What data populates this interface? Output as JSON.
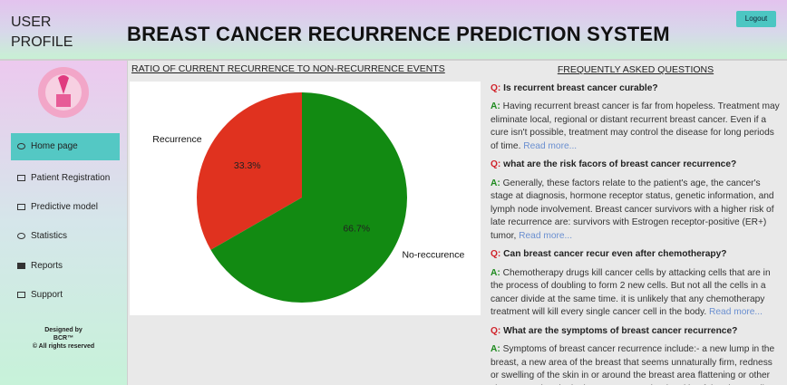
{
  "header": {
    "profile": "USER PROFILE",
    "title": "BREAST CANCER RECURRENCE PREDICTION SYSTEM",
    "logout": "Logout"
  },
  "sidebar": {
    "menu": [
      "Home page",
      "Patient Registration",
      "Predictive model",
      "Statistics",
      "Reports",
      "Support"
    ],
    "footer": [
      "Designed by",
      "BCR™",
      "© All rights reserved"
    ]
  },
  "chart_data": {
    "type": "pie",
    "title": "RATIO OF CURRENT RECURRENCE TO NON-RECURRENCE EVENTS",
    "categories": [
      "Recurrence",
      "No-reccurence"
    ],
    "values": [
      33.3,
      66.7
    ],
    "value_labels": [
      "33.3%",
      "66.7%"
    ],
    "colors": [
      "#e0321f",
      "#128a12"
    ],
    "start_angle": 90
  },
  "faq": {
    "title": "FREQUENTLY ASKED QUESTIONS",
    "q_label": "Q:",
    "a_label": "A:",
    "link": "Read more...",
    "items": [
      {
        "question": "Is recurrent breast cancer curable?",
        "answer": "Having recurrent breast cancer is far from hopeless. Treatment may eliminate local, regional or distant recurrent breast cancer. Even if a cure isn't possible, treatment may control the disease for long periods of time."
      },
      {
        "question": "what are the risk facors of breast cancer recurrence?",
        "answer": "Generally, these factors relate to the patient's age, the cancer's stage at diagnosis, hormone receptor status, genetic information, and lymph node involvement. Breast cancer survivors with a higher risk of late recurrence are: survivors with Estrogen receptor-positive (ER+) tumor,"
      },
      {
        "question": "Can breast cancer recur even after chemotherapy?",
        "answer": "Chemotherapy drugs kill cancer cells by attacking cells that are in the process of doubling to form 2 new cells. But not all the cells in a cancer divide at the same time. it is unlikely that any chemotherapy treatment will kill every single cancer cell in the body."
      },
      {
        "question": "What are the symptoms of breast cancer recurrence?",
        "answer": "Symptoms of breast cancer recurrence include:- a new lump in the breast, a new area of the breast that seems unnaturally firm, redness or swelling of the skin in or around the breast area flattening or other changes to the nipple, bumps on or under the skin of the chest wall"
      }
    ]
  }
}
